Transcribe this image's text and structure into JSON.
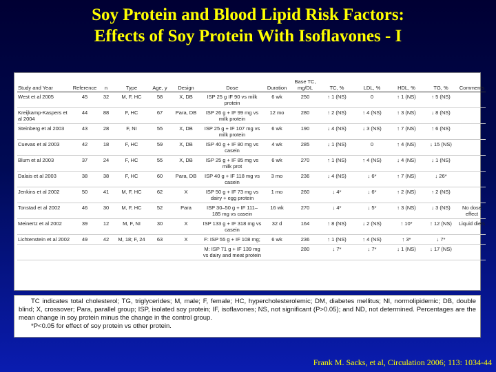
{
  "header": {
    "title_lines": [
      "Soy Protein and Blood Lipid Risk Factors:",
      "Effects of Soy Protein With Isoflavones - I"
    ]
  },
  "table": {
    "columns": [
      "Study and Year",
      "Reference",
      "n",
      "Type",
      "Age, y",
      "Design",
      "Dose",
      "Duration",
      "Base TC, mg/DL",
      "TC, %",
      "LDL, %",
      "HDL, %",
      "TG, %",
      "Comments"
    ],
    "rows": [
      [
        "West et al 2005",
        "45",
        "32",
        "M, F, HC",
        "58",
        "X, DB",
        "ISP 25 g IF 90 vs milk protein",
        "6 wk",
        "250",
        "↑ 1 (NS)",
        "0",
        "↑ 1 (NS)",
        "↑ 5 (NS)",
        null
      ],
      [
        "Kreijkamp-Kaspers et al 2004",
        "44",
        "88",
        "F, HC",
        "67",
        "Para, DB",
        "ISP 26 g + IF 99 mg vs milk protein",
        "12 mo",
        "280",
        "↑ 2 (NS)",
        "↑ 4 (NS)",
        "↑ 3 (NS)",
        "↓ 8 (NS)",
        null
      ],
      [
        "Steinberg et al 2003",
        "43",
        "28",
        "F, NI",
        "55",
        "X, DB",
        "ISP 25 g + IF 107 mg vs milk protein",
        "6 wk",
        "190",
        "↓ 4 (NS)",
        "↓ 3 (NS)",
        "↑ 7 (NS)",
        "↑ 6 (NS)",
        null
      ],
      [
        "Cuevas et al 2003",
        "42",
        "18",
        "F, HC",
        "59",
        "X, DB",
        "ISP 40 g + IF 80 mg vs casein",
        "4 wk",
        "285",
        "↓ 1 (NS)",
        "0",
        "↑ 4 (NS)",
        "↓ 15 (NS)",
        null
      ],
      [
        "Blum et al 2003",
        "37",
        "24",
        "F, HC",
        "55",
        "X, DB",
        "ISP 25 g + IF 85 mg vs milk prot",
        "6 wk",
        "270",
        "↑ 1 (NS)",
        "↑ 4 (NS)",
        "↓ 4 (NS)",
        "↓ 1 (NS)",
        null
      ],
      [
        "Dalais et al 2003",
        "38",
        "38",
        "F, HC",
        "60",
        "Para, DB",
        "ISP 40 g + IF 118 mg vs casein",
        "3 mo",
        "236",
        "↓ 4 (NS)",
        "↓ 6*",
        "↑ 7 (NS)",
        "↓ 26*",
        null
      ],
      [
        "Jenkins et al 2002",
        "50",
        "41",
        "M, F, HC",
        "62",
        "X",
        "ISP 50 g + IF 73 mg vs dairy + egg protein",
        "1 mo",
        "260",
        "↓ 4*",
        "↓ 6*",
        "↑ 2 (NS)",
        "↑ 2 (NS)",
        null
      ],
      [
        "Tonstad et al 2002",
        "46",
        "30",
        "M, F, HC",
        "52",
        "Para",
        "ISP 30–50 g + IF 111–185 mg vs casein",
        "16 wk",
        "270",
        "↓ 4*",
        "↓ 5*",
        "↑ 3 (NS)",
        "↓ 3 (NS)",
        "No dose effect"
      ],
      [
        "Meinertz et al 2002",
        "39",
        "12",
        "M, F, NI",
        "30",
        "X",
        "ISP 133 g + IF 318 mg vs casein",
        "32 d",
        "164",
        "↑ 8 (NS)",
        "↓ 2 (NS)",
        "↑ 10*",
        "↑ 12 (NS)",
        "Liquid diets"
      ],
      [
        "Lichtenstein et al 2002",
        "49",
        "42",
        "M, 18; F, 24",
        "63",
        "X",
        "F: ISP 55 g + IF 108 mg;",
        "6 wk",
        "236",
        "↑ 1 (NS)",
        "↑ 4 (NS)",
        "↑ 3*",
        "↓ 7*",
        null
      ],
      [
        null,
        null,
        null,
        null,
        null,
        null,
        "M: ISP 71 g + IF 139 mg vs dairy and meat protein",
        null,
        "280",
        "↓ 7*",
        "↓ 7*",
        "↓ 1 (NS)",
        "↓ 17 (NS)",
        null
      ]
    ]
  },
  "footnote": {
    "text": "TC indicates total cholesterol; TG, triglycerides; M, male; F, female; HC, hypercholesterolemic; DM, diabetes mellitus; NI, normolipidemic; DB, double blind; X, crossover; Para, parallel group; ISP, isolated soy protein; IF, isoflavones; NS, not significant (P>0.05); and ND, not determined. Percentages are the mean change in soy protein minus the change in the control group.",
    "significance": "*P<0.05 for effect of soy protein vs other protein."
  },
  "citation": "Frank M. Sacks, et al, Circulation  2006; 113: 1034-44"
}
